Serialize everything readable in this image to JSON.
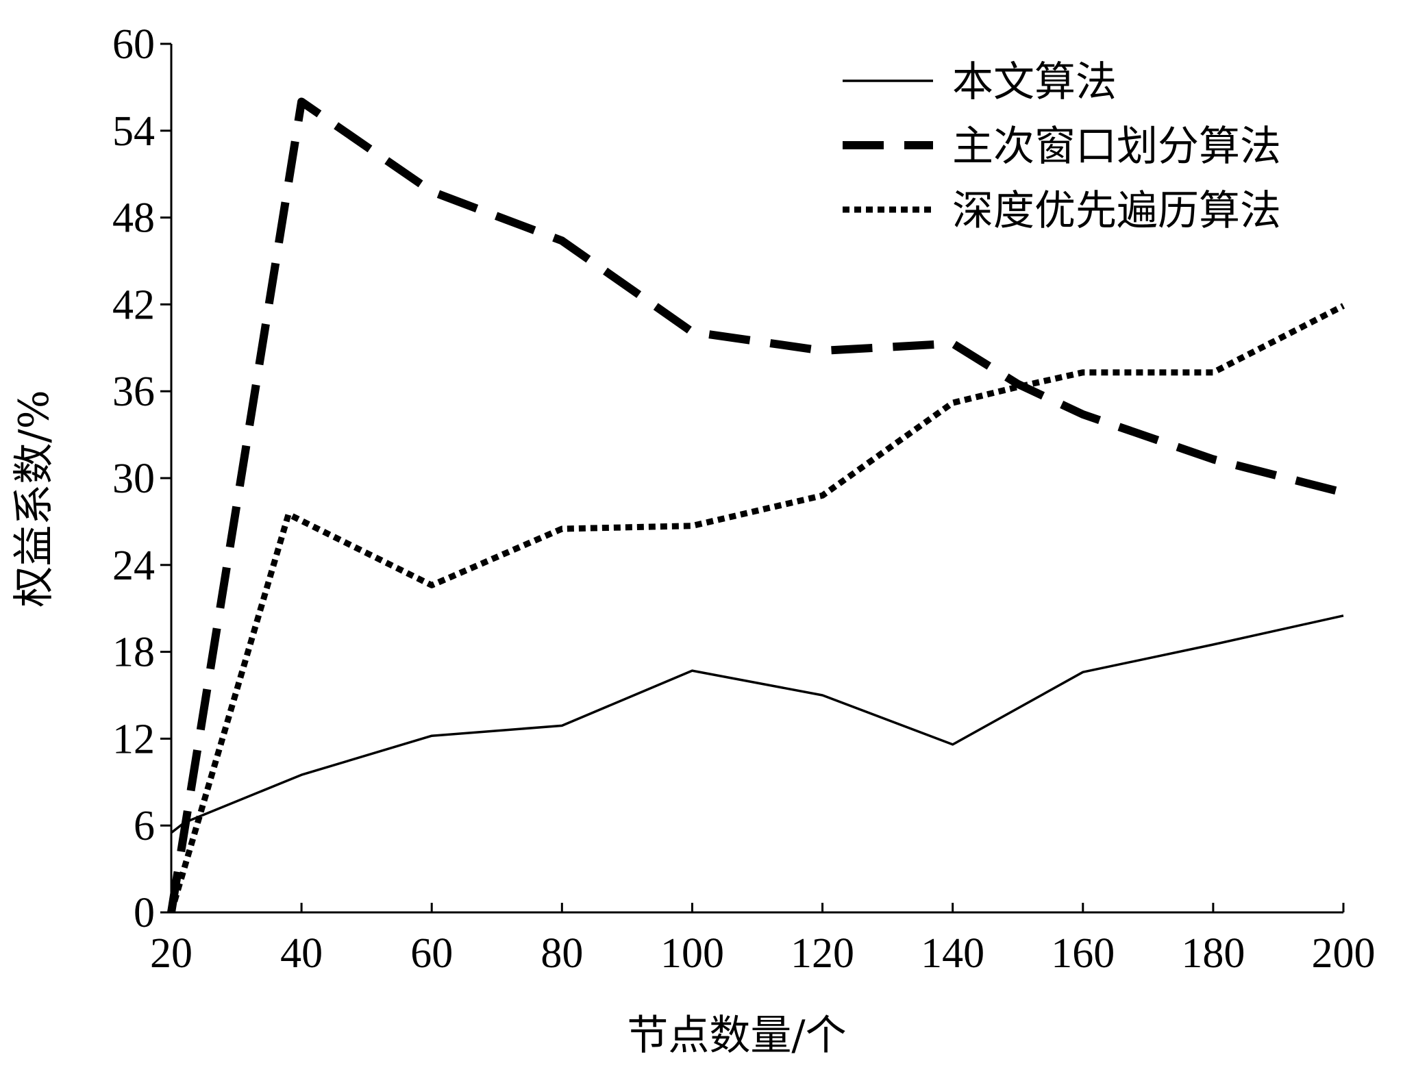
{
  "chart_data": {
    "type": "line",
    "xlabel": "节点数量/个",
    "ylabel": "权益系数/%",
    "x": [
      20,
      40,
      60,
      80,
      100,
      120,
      140,
      160,
      180,
      200
    ],
    "xticks": [
      20,
      40,
      60,
      80,
      100,
      120,
      140,
      160,
      180,
      200
    ],
    "yticks": [
      0,
      6,
      12,
      18,
      24,
      30,
      36,
      42,
      48,
      54,
      60
    ],
    "xlim": [
      20,
      200
    ],
    "ylim": [
      0,
      60
    ],
    "grid": false,
    "legend_position": "top-right",
    "series": [
      {
        "name": "本文算法",
        "style": "solid",
        "color": "#000000",
        "points": [
          [
            20,
            5.5
          ],
          [
            22,
            6.2
          ],
          [
            40,
            9.5
          ],
          [
            60,
            12.2
          ],
          [
            80,
            12.9
          ],
          [
            100,
            16.7
          ],
          [
            120,
            15.0
          ],
          [
            140,
            11.6
          ],
          [
            160,
            16.6
          ],
          [
            180,
            18.5
          ],
          [
            200,
            20.5
          ]
        ]
      },
      {
        "name": "主次窗口划分算法",
        "style": "dashed",
        "color": "#000000",
        "points": [
          [
            20,
            0
          ],
          [
            40,
            56.0
          ],
          [
            60,
            49.8
          ],
          [
            80,
            46.4
          ],
          [
            100,
            40.1
          ],
          [
            120,
            38.8
          ],
          [
            140,
            39.3
          ],
          [
            150,
            36.5
          ],
          [
            160,
            34.4
          ],
          [
            180,
            31.3
          ],
          [
            200,
            29.0
          ]
        ]
      },
      {
        "name": "深度优先遍历算法",
        "style": "dotted",
        "color": "#000000",
        "points": [
          [
            20,
            0
          ],
          [
            38,
            27.5
          ],
          [
            60,
            22.6
          ],
          [
            80,
            26.5
          ],
          [
            100,
            26.7
          ],
          [
            120,
            28.8
          ],
          [
            140,
            35.2
          ],
          [
            150,
            36.3
          ],
          [
            160,
            37.3
          ],
          [
            180,
            37.3
          ],
          [
            200,
            41.9
          ]
        ]
      }
    ]
  }
}
